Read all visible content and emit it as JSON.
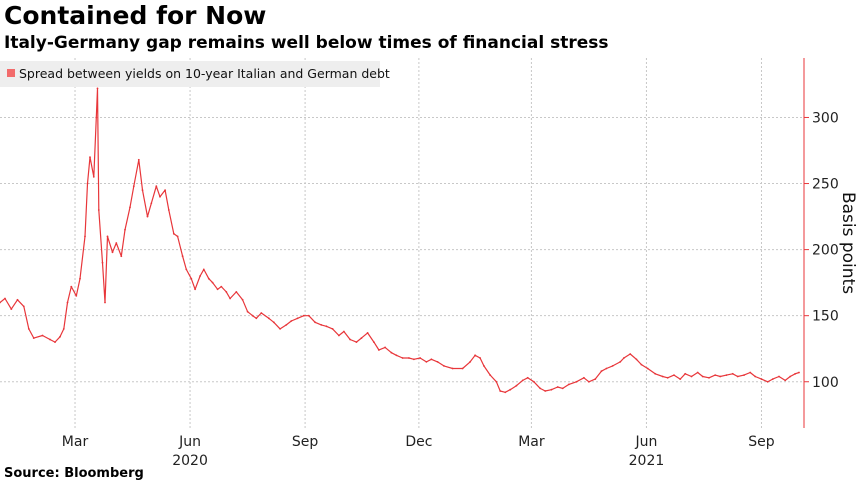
{
  "header": {
    "title": "Contained for Now",
    "subtitle": "Italy-Germany gap remains well below times of financial stress"
  },
  "footer": {
    "source": "Source: Bloomberg"
  },
  "chart_data": {
    "type": "line",
    "title": "Contained for Now",
    "subtitle": "Italy-Germany gap remains well below times of financial stress",
    "xlabel": "",
    "ylabel": "Basis points",
    "ylim": [
      65,
      345
    ],
    "xlim": [
      "2020-01-01",
      "2021-10-05"
    ],
    "y_ticks": [
      100,
      150,
      200,
      250,
      300
    ],
    "x_ticks": [
      {
        "date": "2020-03-01",
        "label": "Mar"
      },
      {
        "date": "2020-06-01",
        "label": "Jun"
      },
      {
        "date": "2020-09-01",
        "label": "Sep"
      },
      {
        "date": "2020-12-01",
        "label": "Dec"
      },
      {
        "date": "2021-03-01",
        "label": "Mar"
      },
      {
        "date": "2021-06-01",
        "label": "Jun"
      },
      {
        "date": "2021-09-01",
        "label": "Sep"
      }
    ],
    "year_labels": [
      {
        "date": "2020-06-01",
        "label": "2020"
      },
      {
        "date": "2021-06-01",
        "label": "2021"
      }
    ],
    "grid": true,
    "legend_position": "top-left",
    "series": [
      {
        "name": "Spread between yields on 10-year Italian and German debt",
        "color": "#e8363a",
        "points": [
          [
            "2020-01-01",
            160
          ],
          [
            "2020-01-05",
            163
          ],
          [
            "2020-01-10",
            155
          ],
          [
            "2020-01-15",
            162
          ],
          [
            "2020-01-20",
            157
          ],
          [
            "2020-01-24",
            140
          ],
          [
            "2020-01-28",
            133
          ],
          [
            "2020-02-04",
            135
          ],
          [
            "2020-02-10",
            132
          ],
          [
            "2020-02-14",
            130
          ],
          [
            "2020-02-18",
            134
          ],
          [
            "2020-02-21",
            140
          ],
          [
            "2020-02-24",
            160
          ],
          [
            "2020-02-27",
            172
          ],
          [
            "2020-03-02",
            165
          ],
          [
            "2020-03-05",
            178
          ],
          [
            "2020-03-09",
            210
          ],
          [
            "2020-03-11",
            250
          ],
          [
            "2020-03-13",
            270
          ],
          [
            "2020-03-16",
            255
          ],
          [
            "2020-03-18",
            300
          ],
          [
            "2020-03-19",
            322
          ],
          [
            "2020-03-20",
            230
          ],
          [
            "2020-03-23",
            190
          ],
          [
            "2020-03-25",
            160
          ],
          [
            "2020-03-27",
            210
          ],
          [
            "2020-03-31",
            198
          ],
          [
            "2020-04-03",
            205
          ],
          [
            "2020-04-07",
            195
          ],
          [
            "2020-04-10",
            215
          ],
          [
            "2020-04-14",
            232
          ],
          [
            "2020-04-17",
            248
          ],
          [
            "2020-04-21",
            268
          ],
          [
            "2020-04-24",
            245
          ],
          [
            "2020-04-28",
            225
          ],
          [
            "2020-05-01",
            235
          ],
          [
            "2020-05-05",
            248
          ],
          [
            "2020-05-08",
            240
          ],
          [
            "2020-05-12",
            245
          ],
          [
            "2020-05-15",
            230
          ],
          [
            "2020-05-19",
            212
          ],
          [
            "2020-05-22",
            210
          ],
          [
            "2020-05-26",
            195
          ],
          [
            "2020-05-29",
            185
          ],
          [
            "2020-06-02",
            178
          ],
          [
            "2020-06-05",
            170
          ],
          [
            "2020-06-09",
            180
          ],
          [
            "2020-06-12",
            185
          ],
          [
            "2020-06-16",
            178
          ],
          [
            "2020-06-19",
            175
          ],
          [
            "2020-06-23",
            170
          ],
          [
            "2020-06-26",
            172
          ],
          [
            "2020-06-30",
            168
          ],
          [
            "2020-07-03",
            163
          ],
          [
            "2020-07-08",
            168
          ],
          [
            "2020-07-13",
            162
          ],
          [
            "2020-07-17",
            153
          ],
          [
            "2020-07-21",
            150
          ],
          [
            "2020-07-24",
            148
          ],
          [
            "2020-07-28",
            152
          ],
          [
            "2020-08-03",
            148
          ],
          [
            "2020-08-07",
            145
          ],
          [
            "2020-08-12",
            140
          ],
          [
            "2020-08-17",
            143
          ],
          [
            "2020-08-21",
            146
          ],
          [
            "2020-08-26",
            148
          ],
          [
            "2020-08-31",
            150
          ],
          [
            "2020-09-04",
            150
          ],
          [
            "2020-09-09",
            145
          ],
          [
            "2020-09-14",
            143
          ],
          [
            "2020-09-18",
            142
          ],
          [
            "2020-09-23",
            140
          ],
          [
            "2020-09-28",
            135
          ],
          [
            "2020-10-02",
            138
          ],
          [
            "2020-10-07",
            132
          ],
          [
            "2020-10-12",
            130
          ],
          [
            "2020-10-16",
            133
          ],
          [
            "2020-10-21",
            137
          ],
          [
            "2020-10-26",
            130
          ],
          [
            "2020-10-30",
            124
          ],
          [
            "2020-11-04",
            126
          ],
          [
            "2020-11-09",
            122
          ],
          [
            "2020-11-13",
            120
          ],
          [
            "2020-11-18",
            118
          ],
          [
            "2020-11-23",
            118
          ],
          [
            "2020-11-27",
            117
          ],
          [
            "2020-12-02",
            118
          ],
          [
            "2020-12-07",
            115
          ],
          [
            "2020-12-11",
            117
          ],
          [
            "2020-12-16",
            115
          ],
          [
            "2020-12-21",
            112
          ],
          [
            "2020-12-28",
            110
          ],
          [
            "2021-01-05",
            110
          ],
          [
            "2021-01-11",
            115
          ],
          [
            "2021-01-15",
            120
          ],
          [
            "2021-01-19",
            118
          ],
          [
            "2021-01-22",
            112
          ],
          [
            "2021-01-27",
            105
          ],
          [
            "2021-02-01",
            100
          ],
          [
            "2021-02-04",
            93
          ],
          [
            "2021-02-08",
            92
          ],
          [
            "2021-02-12",
            94
          ],
          [
            "2021-02-17",
            97
          ],
          [
            "2021-02-22",
            101
          ],
          [
            "2021-02-26",
            103
          ],
          [
            "2021-03-03",
            100
          ],
          [
            "2021-03-08",
            95
          ],
          [
            "2021-03-12",
            93
          ],
          [
            "2021-03-17",
            94
          ],
          [
            "2021-03-22",
            96
          ],
          [
            "2021-03-26",
            95
          ],
          [
            "2021-03-31",
            98
          ],
          [
            "2021-04-06",
            100
          ],
          [
            "2021-04-12",
            103
          ],
          [
            "2021-04-16",
            100
          ],
          [
            "2021-04-21",
            102
          ],
          [
            "2021-04-26",
            108
          ],
          [
            "2021-04-30",
            110
          ],
          [
            "2021-05-05",
            112
          ],
          [
            "2021-05-11",
            115
          ],
          [
            "2021-05-14",
            118
          ],
          [
            "2021-05-19",
            121
          ],
          [
            "2021-05-24",
            117
          ],
          [
            "2021-05-28",
            113
          ],
          [
            "2021-06-02",
            110
          ],
          [
            "2021-06-08",
            106
          ],
          [
            "2021-06-14",
            104
          ],
          [
            "2021-06-18",
            103
          ],
          [
            "2021-06-23",
            105
          ],
          [
            "2021-06-28",
            102
          ],
          [
            "2021-07-02",
            106
          ],
          [
            "2021-07-07",
            104
          ],
          [
            "2021-07-12",
            107
          ],
          [
            "2021-07-16",
            104
          ],
          [
            "2021-07-21",
            103
          ],
          [
            "2021-07-26",
            105
          ],
          [
            "2021-07-30",
            104
          ],
          [
            "2021-08-04",
            105
          ],
          [
            "2021-08-09",
            106
          ],
          [
            "2021-08-13",
            104
          ],
          [
            "2021-08-18",
            105
          ],
          [
            "2021-08-23",
            107
          ],
          [
            "2021-08-27",
            104
          ],
          [
            "2021-09-01",
            102
          ],
          [
            "2021-09-06",
            100
          ],
          [
            "2021-09-10",
            102
          ],
          [
            "2021-09-15",
            104
          ],
          [
            "2021-09-20",
            101
          ],
          [
            "2021-09-24",
            104
          ],
          [
            "2021-09-28",
            106
          ],
          [
            "2021-10-01",
            107
          ]
        ]
      }
    ]
  }
}
